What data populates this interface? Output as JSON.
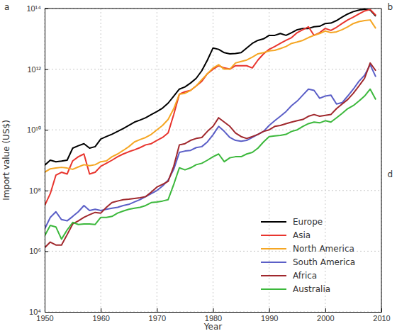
{
  "chart_data": {
    "type": "line",
    "x_label": "Year",
    "y_label": "Import value (US$)",
    "annotations": [
      "a",
      "b",
      "d"
    ],
    "log": "y",
    "grid": true,
    "legend": "lower right",
    "xlim": [
      1950,
      2010
    ],
    "xticks": [
      1950,
      1960,
      1970,
      1980,
      1990,
      2000,
      2010
    ],
    "ylim": [
      10000.0,
      100000000000000.0
    ],
    "yticks": [
      {
        "value": 10000.0,
        "label": "10⁴"
      },
      {
        "value": 1000000.0,
        "label": "10⁶"
      },
      {
        "value": 100000000.0,
        "label": "10⁸"
      },
      {
        "value": 10000000000.0,
        "label": "10¹⁰"
      },
      {
        "value": 1000000000000.0,
        "label": "10¹²"
      },
      {
        "value": 100000000000000.0,
        "label": "10¹⁴"
      }
    ],
    "x": [
      1950,
      1951,
      1952,
      1953,
      1954,
      1955,
      1956,
      1957,
      1958,
      1959,
      1960,
      1961,
      1962,
      1963,
      1964,
      1965,
      1966,
      1967,
      1968,
      1969,
      1970,
      1971,
      1972,
      1973,
      1974,
      1975,
      1976,
      1977,
      1978,
      1979,
      1980,
      1981,
      1982,
      1983,
      1984,
      1985,
      1986,
      1987,
      1988,
      1989,
      1990,
      1991,
      1992,
      1993,
      1994,
      1995,
      1996,
      1997,
      1998,
      1999,
      2000,
      2001,
      2002,
      2003,
      2004,
      2005,
      2006,
      2007,
      2008,
      2009
    ],
    "series": [
      {
        "name": "Europe",
        "color": "#000000",
        "values": [
          680000000.0,
          1000000000.0,
          890000000.0,
          930000000.0,
          1000000000.0,
          2500000000.0,
          3000000000.0,
          3500000000.0,
          2500000000.0,
          2800000000.0,
          5000000000.0,
          6000000000.0,
          7200000000.0,
          8900000000.0,
          11000000000.0,
          14000000000.0,
          18000000000.0,
          21000000000.0,
          25000000000.0,
          32000000000.0,
          40000000000.0,
          52000000000.0,
          76000000000.0,
          130000000000.0,
          220000000000.0,
          260000000000.0,
          350000000000.0,
          500000000000.0,
          890000000000.0,
          2000000000000.0,
          5000000000000.0,
          4500000000000.0,
          3500000000000.0,
          3200000000000.0,
          3300000000000.0,
          3500000000000.0,
          5000000000000.0,
          7100000000000.0,
          8900000000000.0,
          10000000000000.0,
          13000000000000.0,
          13000000000000.0,
          15000000000000.0,
          13000000000000.0,
          16000000000000.0,
          20000000000000.0,
          22000000000000.0,
          22000000000000.0,
          25000000000000.0,
          26000000000000.0,
          32000000000000.0,
          33000000000000.0,
          40000000000000.0,
          52000000000000.0,
          66000000000000.0,
          79000000000000.0,
          89000000000000.0,
          95000000000000.0,
          89000000000000.0,
          56000000000000.0
        ]
      },
      {
        "name": "Asia",
        "color": "#e8352e",
        "values": [
          32000000.0,
          79000000.0,
          320000000.0,
          400000000.0,
          350000000.0,
          950000000.0,
          1300000000.0,
          1600000000.0,
          350000000.0,
          400000000.0,
          630000000.0,
          790000000.0,
          1000000000.0,
          1300000000.0,
          1600000000.0,
          1900000000.0,
          2200000000.0,
          2600000000.0,
          3200000000.0,
          3500000000.0,
          4500000000.0,
          5600000000.0,
          7900000000.0,
          32000000000.0,
          150000000000.0,
          180000000000.0,
          200000000000.0,
          280000000000.0,
          400000000000.0,
          710000000000.0,
          1000000000000.0,
          1300000000000.0,
          1100000000000.0,
          1000000000000.0,
          1300000000000.0,
          1300000000000.0,
          1300000000000.0,
          1100000000000.0,
          2000000000000.0,
          3200000000000.0,
          4500000000000.0,
          5600000000000.0,
          7100000000000.0,
          8900000000000.0,
          11000000000000.0,
          16000000000000.0,
          20000000000000.0,
          25000000000000.0,
          13000000000000.0,
          16000000000000.0,
          22000000000000.0,
          19000000000000.0,
          24000000000000.0,
          32000000000000.0,
          42000000000000.0,
          52000000000000.0,
          66000000000000.0,
          83000000000000.0,
          93000000000000.0,
          60000000000000.0
        ]
      },
      {
        "name": "North America",
        "color": "#f5a623",
        "values": [
          400000000.0,
          520000000.0,
          550000000.0,
          580000000.0,
          550000000.0,
          500000000.0,
          600000000.0,
          710000000.0,
          660000000.0,
          710000000.0,
          890000000.0,
          950000000.0,
          1300000000.0,
          1600000000.0,
          2100000000.0,
          2800000000.0,
          4000000000.0,
          4800000000.0,
          5600000000.0,
          7100000000.0,
          10000000000.0,
          14000000000.0,
          22000000000.0,
          50000000000.0,
          150000000000.0,
          160000000000.0,
          200000000000.0,
          280000000000.0,
          450000000000.0,
          710000000000.0,
          1100000000000.0,
          1400000000000.0,
          1000000000000.0,
          1000000000000.0,
          1600000000000.0,
          1800000000000.0,
          2000000000000.0,
          2500000000000.0,
          3200000000000.0,
          3500000000000.0,
          4000000000000.0,
          4200000000000.0,
          4800000000000.0,
          5600000000000.0,
          7100000000000.0,
          7900000000000.0,
          8900000000000.0,
          11000000000000.0,
          13000000000000.0,
          15000000000000.0,
          18000000000000.0,
          16000000000000.0,
          17000000000000.0,
          20000000000000.0,
          25000000000000.0,
          32000000000000.0,
          37000000000000.0,
          40000000000000.0,
          42000000000000.0,
          22000000000000.0
        ]
      },
      {
        "name": "South America",
        "color": "#5b5fc7",
        "values": [
          5400000.0,
          13000000.0,
          20000000.0,
          11000000.0,
          10000000.0,
          14000000.0,
          20000000.0,
          32000000.0,
          22000000.0,
          24000000.0,
          22000000.0,
          24000000.0,
          26000000.0,
          28000000.0,
          32000000.0,
          35000000.0,
          42000000.0,
          50000000.0,
          63000000.0,
          79000000.0,
          100000000.0,
          140000000.0,
          220000000.0,
          500000000.0,
          1800000000.0,
          2000000000.0,
          2100000000.0,
          2600000000.0,
          2800000000.0,
          4000000000.0,
          6900000000.0,
          13000000000.0,
          8900000000.0,
          5600000000.0,
          4500000000.0,
          4200000000.0,
          4500000000.0,
          5600000000.0,
          7100000000.0,
          8900000000.0,
          14000000000.0,
          20000000000.0,
          28000000000.0,
          40000000000.0,
          63000000000.0,
          89000000000.0,
          140000000000.0,
          220000000000.0,
          200000000000.0,
          110000000000.0,
          130000000000.0,
          140000000000.0,
          71000000000.0,
          79000000000.0,
          130000000000.0,
          220000000000.0,
          400000000000.0,
          630000000000.0,
          1400000000000.0,
          560000000000.0
        ]
      },
      {
        "name": "Africa",
        "color": "#a0282d",
        "values": [
          1300000.0,
          2000000.0,
          1600000.0,
          1600000.0,
          3500000.0,
          7900000.0,
          10000000.0,
          13000000.0,
          16000000.0,
          19000000.0,
          18000000.0,
          28000000.0,
          40000000.0,
          45000000.0,
          50000000.0,
          52000000.0,
          55000000.0,
          58000000.0,
          63000000.0,
          89000000.0,
          130000000.0,
          160000000.0,
          200000000.0,
          630000000.0,
          3200000000.0,
          3500000000.0,
          4500000000.0,
          5200000000.0,
          5600000000.0,
          8900000000.0,
          13000000000.0,
          25000000000.0,
          18000000000.0,
          13000000000.0,
          7900000000.0,
          6000000000.0,
          5200000000.0,
          6000000000.0,
          7100000000.0,
          8900000000.0,
          10000000000.0,
          13000000000.0,
          14000000000.0,
          16000000000.0,
          18000000000.0,
          20000000000.0,
          22000000000.0,
          28000000000.0,
          32000000000.0,
          28000000000.0,
          30000000000.0,
          32000000000.0,
          50000000000.0,
          71000000000.0,
          100000000000.0,
          160000000000.0,
          280000000000.0,
          500000000000.0,
          1600000000000.0,
          890000000000.0
        ]
      },
      {
        "name": "Australia",
        "color": "#3cb83c",
        "values": [
          3200000.0,
          7100000.0,
          6300000.0,
          2500000.0,
          5000000.0,
          8900000.0,
          7600000.0,
          7900000.0,
          7900000.0,
          7600000.0,
          13000000.0,
          13000000.0,
          14000000.0,
          18000000.0,
          21000000.0,
          24000000.0,
          26000000.0,
          28000000.0,
          32000000.0,
          40000000.0,
          42000000.0,
          45000000.0,
          50000000.0,
          160000000.0,
          560000000.0,
          480000000.0,
          560000000.0,
          710000000.0,
          790000000.0,
          1000000000.0,
          1300000000.0,
          1600000000.0,
          890000000.0,
          1200000000.0,
          1300000000.0,
          1300000000.0,
          1600000000.0,
          1800000000.0,
          2500000000.0,
          4000000000.0,
          6000000000.0,
          6300000000.0,
          6600000000.0,
          7100000000.0,
          8900000000.0,
          10000000000.0,
          13000000000.0,
          16000000000.0,
          18000000000.0,
          17000000000.0,
          20000000000.0,
          18000000000.0,
          25000000000.0,
          35000000000.0,
          50000000000.0,
          63000000000.0,
          89000000000.0,
          130000000000.0,
          220000000000.0,
          100000000000.0
        ]
      }
    ]
  }
}
